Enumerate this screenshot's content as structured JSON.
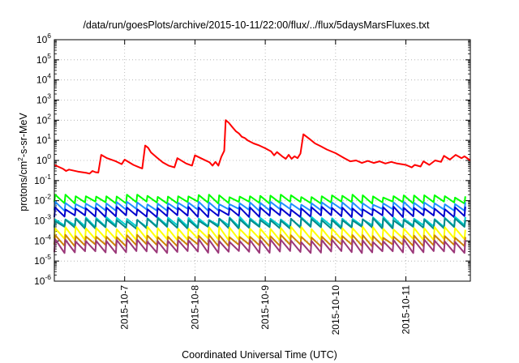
{
  "chart_data": {
    "type": "line",
    "title": "/data/run/goesPlots/archive/2015-10-11/22:00/flux/../flux/5daysMarsFluxes.txt",
    "xlabel": "Coordinated Universal Time (UTC)",
    "ylabel_parts": [
      "protons/cm",
      "2",
      "-s-sr-MeV"
    ],
    "yscale": "log",
    "ylim": [
      1e-06,
      1000000.0
    ],
    "yticks": [
      {
        "base": "10",
        "exp": "-6",
        "value": 1e-06
      },
      {
        "base": "10",
        "exp": "-5",
        "value": 1e-05
      },
      {
        "base": "10",
        "exp": "-4",
        "value": 0.0001
      },
      {
        "base": "10",
        "exp": "-3",
        "value": 0.001
      },
      {
        "base": "10",
        "exp": "-2",
        "value": 0.01
      },
      {
        "base": "10",
        "exp": "-1",
        "value": 0.1
      },
      {
        "base": "10",
        "exp": "0",
        "value": 1
      },
      {
        "base": "10",
        "exp": "1",
        "value": 10
      },
      {
        "base": "10",
        "exp": "2",
        "value": 100
      },
      {
        "base": "10",
        "exp": "3",
        "value": 1000
      },
      {
        "base": "10",
        "exp": "4",
        "value": 10000
      },
      {
        "base": "10",
        "exp": "5",
        "value": 100000
      },
      {
        "base": "10",
        "exp": "6",
        "value": 1000000
      }
    ],
    "xlim": [
      "2015-10-06T00:00",
      "2015-10-11T22:00"
    ],
    "xticks": [
      "2015-10-7",
      "2015-10-8",
      "2015-10-9",
      "2015-10-10",
      "2015-10-11"
    ],
    "grid": true,
    "legend": "none",
    "series": [
      {
        "color": "#ff0000",
        "points": [
          [
            "2015-10-06T00:00",
            0.6
          ],
          [
            "2015-10-06T03:00",
            0.38
          ],
          [
            "2015-10-06T04:00",
            0.3
          ],
          [
            "2015-10-06T05:00",
            0.35
          ],
          [
            "2015-10-06T08:00",
            0.28
          ],
          [
            "2015-10-06T11:00",
            0.24
          ],
          [
            "2015-10-06T12:00",
            0.22
          ],
          [
            "2015-10-06T13:00",
            0.3
          ],
          [
            "2015-10-06T14:00",
            0.26
          ],
          [
            "2015-10-06T15:00",
            0.25
          ],
          [
            "2015-10-06T16:00",
            1.9
          ],
          [
            "2015-10-06T18:00",
            1.3
          ],
          [
            "2015-10-06T21:00",
            0.9
          ],
          [
            "2015-10-06T23:00",
            0.65
          ],
          [
            "2015-10-07T00:00",
            1.1
          ],
          [
            "2015-10-07T03:00",
            0.6
          ],
          [
            "2015-10-07T05:00",
            0.45
          ],
          [
            "2015-10-07T06:00",
            0.4
          ],
          [
            "2015-10-07T07:00",
            5.5
          ],
          [
            "2015-10-07T08:00",
            4.3
          ],
          [
            "2015-10-07T09:00",
            2.5
          ],
          [
            "2015-10-07T11:00",
            1.4
          ],
          [
            "2015-10-07T13:00",
            0.8
          ],
          [
            "2015-10-07T15:00",
            0.55
          ],
          [
            "2015-10-07T17:00",
            0.45
          ],
          [
            "2015-10-07T18:00",
            1.3
          ],
          [
            "2015-10-07T21:00",
            0.7
          ],
          [
            "2015-10-07T23:00",
            0.55
          ],
          [
            "2015-10-08T00:00",
            1.8
          ],
          [
            "2015-10-08T02:00",
            1.3
          ],
          [
            "2015-10-08T05:00",
            0.8
          ],
          [
            "2015-10-08T06:00",
            0.55
          ],
          [
            "2015-10-08T07:00",
            0.85
          ],
          [
            "2015-10-08T08:00",
            0.55
          ],
          [
            "2015-10-08T09:00",
            1.5
          ],
          [
            "2015-10-08T10:00",
            3.0
          ],
          [
            "2015-10-08T10:30",
            100
          ],
          [
            "2015-10-08T11:30",
            75
          ],
          [
            "2015-10-08T12:30",
            50
          ],
          [
            "2015-10-08T14:00",
            28
          ],
          [
            "2015-10-08T15:00",
            22
          ],
          [
            "2015-10-08T16:00",
            15
          ],
          [
            "2015-10-08T17:00",
            13
          ],
          [
            "2015-10-08T18:00",
            10
          ],
          [
            "2015-10-08T20:00",
            7
          ],
          [
            "2015-10-08T22:00",
            5.5
          ],
          [
            "2015-10-09T00:00",
            4.0
          ],
          [
            "2015-10-09T02:00",
            2.8
          ],
          [
            "2015-10-09T03:00",
            1.8
          ],
          [
            "2015-10-09T04:00",
            2.6
          ],
          [
            "2015-10-09T06:00",
            1.5
          ],
          [
            "2015-10-09T07:00",
            1.2
          ],
          [
            "2015-10-09T08:00",
            1.9
          ],
          [
            "2015-10-09T09:00",
            1.2
          ],
          [
            "2015-10-09T10:00",
            1.6
          ],
          [
            "2015-10-09T11:00",
            1.3
          ],
          [
            "2015-10-09T12:00",
            2.2
          ],
          [
            "2015-10-09T13:00",
            20
          ],
          [
            "2015-10-09T15:00",
            12
          ],
          [
            "2015-10-09T17:00",
            7
          ],
          [
            "2015-10-09T19:00",
            5
          ],
          [
            "2015-10-09T21:00",
            3.5
          ],
          [
            "2015-10-10T00:00",
            2.3
          ],
          [
            "2015-10-10T03:00",
            1.3
          ],
          [
            "2015-10-10T05:00",
            0.9
          ],
          [
            "2015-10-10T07:00",
            1.0
          ],
          [
            "2015-10-10T09:00",
            0.75
          ],
          [
            "2015-10-10T11:00",
            0.95
          ],
          [
            "2015-10-10T13:00",
            0.75
          ],
          [
            "2015-10-10T15:00",
            0.9
          ],
          [
            "2015-10-10T17:00",
            0.7
          ],
          [
            "2015-10-10T19:00",
            0.85
          ],
          [
            "2015-10-10T21:00",
            0.7
          ],
          [
            "2015-10-11T00:00",
            0.6
          ],
          [
            "2015-10-11T02:00",
            0.45
          ],
          [
            "2015-10-11T03:00",
            0.6
          ],
          [
            "2015-10-11T05:00",
            0.5
          ],
          [
            "2015-10-11T06:00",
            0.9
          ],
          [
            "2015-10-11T08:00",
            0.6
          ],
          [
            "2015-10-11T10:00",
            1.0
          ],
          [
            "2015-10-11T12:00",
            0.85
          ],
          [
            "2015-10-11T13:00",
            1.7
          ],
          [
            "2015-10-11T15:00",
            1.1
          ],
          [
            "2015-10-11T17:00",
            1.9
          ],
          [
            "2015-10-11T19:00",
            1.3
          ],
          [
            "2015-10-11T20:00",
            1.6
          ],
          [
            "2015-10-11T22:00",
            1.0
          ]
        ]
      },
      {
        "color": "#00ff00",
        "pattern": "sawtooth",
        "period_hours": 3.5,
        "high": 0.018,
        "low": 0.008
      },
      {
        "color": "#1e90ff",
        "pattern": "sawtooth",
        "period_hours": 3.5,
        "high": 0.008,
        "low": 0.0035
      },
      {
        "color": "#0000cd",
        "pattern": "sawtooth",
        "period_hours": 3.5,
        "high": 0.0045,
        "low": 0.0017
      },
      {
        "color": "#00cdcd",
        "pattern": "sawtooth",
        "period_hours": 3.5,
        "high": 0.0014,
        "low": 0.00055
      },
      {
        "color": "#008b8b",
        "pattern": "sawtooth",
        "period_hours": 3.5,
        "high": 0.0012,
        "low": 0.00045
      },
      {
        "color": "#ffff00",
        "pattern": "sawtooth",
        "period_hours": 3.5,
        "high": 0.00045,
        "low": 0.00012
      },
      {
        "color": "#cd8500",
        "pattern": "sawtooth",
        "period_hours": 3.5,
        "high": 0.00018,
        "low": 6e-05
      },
      {
        "color": "#9b3779",
        "pattern": "sawtooth",
        "period_hours": 3.5,
        "high": 0.00011,
        "low": 2.8e-05
      }
    ]
  }
}
